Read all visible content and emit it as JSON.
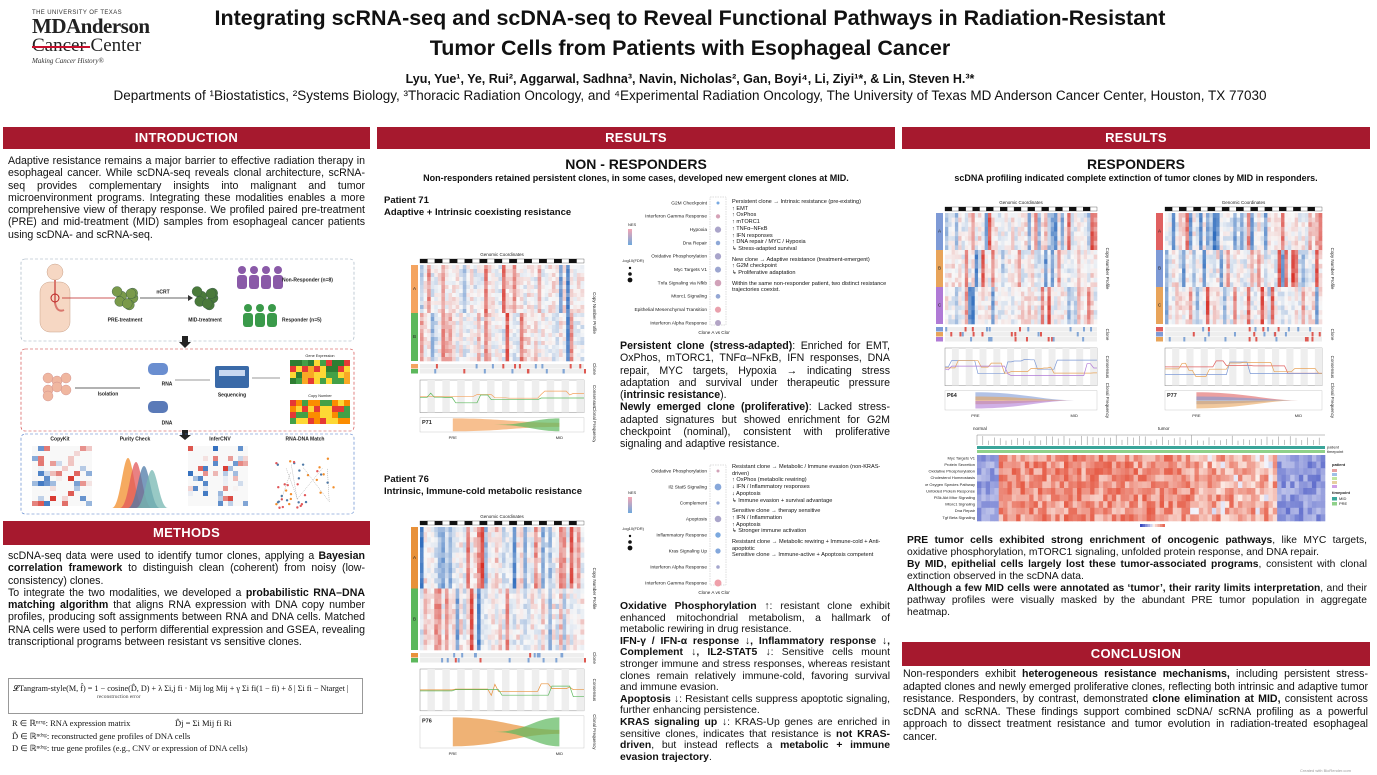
{
  "header": {
    "institution": [
      "THE UNIVERSITY OF TEXAS",
      "MDAnderson",
      "Cancer Center",
      "Making Cancer History®"
    ],
    "title": "Integrating scRNA-seq and scDNA-seq to Reveal Functional Pathways in Radiation-Resistant Tumor Cells from Patients with Esophageal Cancer",
    "authors": "Lyu, Yue¹, Ye, Rui², Aggarwal, Sadhna³, Navin, Nicholas², Gan, Boyi⁴, Li, Ziyi¹*, & Lin, Steven H.³*",
    "affiliations": "Departments of ¹Biostatistics, ²Systems Biology, ³Thoracic Radiation Oncology, and ⁴Experimental Radiation Oncology, The University of Texas MD Anderson Cancer Center, Houston, TX 77030"
  },
  "introduction": {
    "heading": "INTRODUCTION",
    "text": "Adaptive resistance remains a major barrier to effective radiation therapy in esophageal cancer. While scDNA-seq reveals clonal architecture, scRNA-seq provides complementary insights into malignant and tumor microenvironment programs. Integrating these modalities enables a more comprehensive view of therapy response. We profiled paired pre-treatment (PRE) and mid-treatment (MID) samples from esophageal cancer patients using scDNA- and scRNA-seq.",
    "figure": {
      "ncrt": "nCRT",
      "pre": "PRE-treatment",
      "mid": "MID-treatment",
      "non_responder": "Non-Responder (n=8)",
      "responder": "Responder (n=5)",
      "isolation": "Isolation",
      "rna": "RNA",
      "dna": "DNA",
      "sequencing": "Sequencing",
      "gene_expression": "Gene Expression",
      "copy_number": "Copy Number",
      "copykit": "CopyKit",
      "purity": "Purity Check",
      "infercnv": "InferCNV",
      "match": "RNA-DNA Match"
    }
  },
  "methods": {
    "heading": "METHODS",
    "paragraphs": [
      [
        "scDNA-seq data were used to identify tumor clones, applying a ",
        {
          "text": "Bayesian correlation framework",
          "bold": true
        },
        " to distinguish clean (coherent) from noisy (low-consistency) clones."
      ],
      [
        "To integrate the two modalities, we developed a ",
        {
          "text": "probabilistic RNA–DNA matching algorithm",
          "bold": true
        },
        " that aligns RNA expression with DNA copy number profiles, producing soft assignments between RNA and DNA cells. Matched RNA cells were used to perform differential expression and GSEA, revealing transcriptional programs between resistant vs sensitive clones."
      ]
    ],
    "equation": "𝓛Tangram-style(M, f̂) = 1 − cosine(D̂, D) + λ Σi,j fi · Mij log Mij + γ Σi fi(1 − fi) + δ | Σi fi − Ntarget |",
    "equation_note": "reconstruction error",
    "notation": [
      "R ∈ ℝⁿʳˣᵍ: RNA expression matrix",
      "D̂j = Σi Mij fi Ri",
      "D̂ ∈ ℝⁿᵈˣᵍ: reconstructed gene profiles of DNA cells",
      "D ∈ ℝⁿᵈˣᵍ: true gene profiles (e.g., CNV or expression of DNA cells)"
    ]
  },
  "results_nonresponders": {
    "heading": "RESULTS",
    "subheading": "NON - RESPONDERS",
    "summary": "Non-responders retained persistent clones, in some cases, developed new emergent clones at MID.",
    "patient71": {
      "name": "Patient 71",
      "type": "Adaptive + Intrinsic coexisting resistance",
      "figure": {
        "genomic_coordinates": "Genomic Coordinates",
        "copy_number": "Copy Number Profile",
        "clone": "Clone",
        "consensus": "Consensus",
        "clonal_frequency": "Clonal Frequency",
        "sample": "P71",
        "pre": "PRE",
        "mid": "MID",
        "clones": [
          "A",
          "B"
        ]
      },
      "dotplot": {
        "pathways": [
          "G2M Checkpoint",
          "Interferon Gamma Response",
          "Hypoxia",
          "Dna Repair",
          "Oxidative Phosphorylation",
          "Myc Targets V1",
          "Tnfa Signaling via Nfkb",
          "Mtorc1 Signaling",
          "Epithelial Mesenchymal Transition",
          "Interferon Alpha Response"
        ],
        "x_label": "Clone A vs Clone B",
        "legend_nes": "NES",
        "legend_fdr": "-log10(FDR)"
      },
      "notes": [
        "Persistent clone → Intrinsic resistance (pre-existing)",
        "↑ EMT",
        "↑ OxPhos",
        "↑ mTORC1",
        "↑ TNFα–NFκB",
        "↑ IFN responses",
        "↑ DNA repair / MYC / Hypoxia",
        "↳ Stress-adapted survival",
        "",
        "New clone → Adaptive resistance (treatment-emergent)",
        "↑ G2M checkpoint",
        "↳ Proliferative adaptation",
        "",
        "Within the same non-responder patient, two distinct resistance trajectories coexist."
      ],
      "paragraphs": [
        [
          {
            "text": "Persistent clone (stress-adapted)",
            "bold": true
          },
          ": Enriched for EMT, OxPhos, mTORC1, TNFα–NFκB, IFN responses, DNA repair, MYC targets, Hypoxia → indicating stress adaptation and survival under therapeutic pressure (",
          {
            "text": "intrinsic resistance",
            "bold": true
          },
          ")."
        ],
        [
          {
            "text": "Newly emerged clone (proliferative)",
            "bold": true
          },
          ": Lacked stress-adapted signatures but showed enrichment for G2M checkpoint (nominal), consistent with proliferative signaling and adaptive resistance."
        ]
      ]
    },
    "patient76": {
      "name": "Patient 76",
      "type": "Intrinsic, Immune-cold metabolic resistance",
      "figure": {
        "genomic_coordinates": "Genomic Coordinates",
        "copy_number": "Copy Number Profile",
        "clone": "Clone",
        "consensus": "Consensus",
        "clonal_frequency": "Clonal Frequency",
        "sample": "P76",
        "pre": "PRE",
        "mid": "MID",
        "clones": [
          "A",
          "B"
        ]
      },
      "dotplot": {
        "pathways": [
          "Oxidative Phosphorylation",
          "Il2 Stat5 Signaling",
          "Complement",
          "Apoptosis",
          "Inflammatory Response",
          "Kras Signaling Up",
          "Interferon Alpha Response",
          "Interferon Gamma Response"
        ],
        "x_label": "Clone A vs Clone B",
        "legend_nes": "NES",
        "legend_fdr": "-log10(FDR)"
      },
      "notes": [
        "Resistant clone → Metabolic / Immune evasion (non-KRAS-driven)",
        "↑ OxPhos (metabolic rewiring)",
        "↓ IFN / Inflammatory responses",
        "↓ Apoptosis",
        "↳ Immune evasion + survival advantage",
        "",
        "Sensitive clone → therapy sensitive",
        "↑ IFN / Inflammation",
        "↑ Apoptosis",
        "↳ Stronger immune activation",
        "",
        "Resistant clone → Metabolic rewiring + Immune-cold + Anti-apoptotic",
        "Sensitive clone → Immune-active + Apoptosis competent"
      ],
      "paragraphs": [
        [
          {
            "text": "Oxidative Phosphorylation ↑",
            "bold": true
          },
          ": resistant clone exhibit enhanced mitochondrial metabolism, a hallmark of metabolic rewiring in drug resistance."
        ],
        [
          {
            "text": "IFN-γ / IFN-α response ↓, Inflammatory response ↓, Complement ↓, IL2-STAT5 ↓",
            "bold": true
          },
          ": Sensitive cells mount stronger immune and stress responses, whereas resistant clones remain relatively immune-cold, favoring survival and immune evasion."
        ],
        [
          {
            "text": "Apoptosis ↓",
            "bold": true
          },
          ": Resistant cells suppress apoptotic signaling, further enhancing persistence."
        ],
        [
          {
            "text": "KRAS signaling up ↓",
            "bold": true
          },
          ": KRAS-Up genes are enriched in sensitive clones, indicates that resistance is ",
          {
            "text": "not KRAS-driven",
            "bold": true
          },
          ", but instead reflects a ",
          {
            "text": "metabolic + immune evasion trajectory",
            "bold": true
          },
          "."
        ]
      ]
    }
  },
  "results_responders": {
    "heading": "RESULTS",
    "subheading": "RESPONDERS",
    "summary": "scDNA profiling indicated complete extinction of tumor clones by MID in responders.",
    "figures": [
      {
        "genomic_coordinates": "Genomic Coordinates",
        "copy_number": "Copy Number Profile",
        "clone": "Clone",
        "consensus": "Consensus",
        "clonal_frequency": "Clonal Frequency",
        "sample": "P64",
        "pre": "PRE",
        "mid": "MID",
        "clones": [
          "A",
          "B",
          "C"
        ]
      },
      {
        "genomic_coordinates": "Genomic Coordinates",
        "copy_number": "Copy Number Profile",
        "clone": "Clone",
        "consensus": "Consensus",
        "clonal_frequency": "Clonal Frequency",
        "sample": "P77",
        "pre": "PRE",
        "mid": "MID",
        "clones": [
          "A",
          "B",
          "C"
        ]
      }
    ],
    "heatmap": {
      "groups": [
        "normal",
        "tumor"
      ],
      "annotations": [
        "patient",
        "timepoint"
      ],
      "pathways": [
        "Myc Targets V1",
        "Protein Secretion",
        "Oxidative Phosphorylation",
        "Cholesterol Homeostasis",
        "Reactive Oxygen Species Pathway",
        "Unfolded Protein Response",
        "Pi3k Akt Mtor Signaling",
        "Mtorc1 Signaling",
        "Dna Repair",
        "Tgf Beta Signaling"
      ],
      "timepoints": [
        "MID",
        "PRE"
      ]
    },
    "paragraphs": [
      [
        {
          "text": "PRE tumor cells exhibited strong enrichment of oncogenic pathways",
          "bold": true
        },
        ", like MYC targets, oxidative phosphorylation, mTORC1 signaling, unfolded protein response, and DNA repair."
      ],
      [
        {
          "text": "By MID, epithelial cells largely lost these tumor-associated programs",
          "bold": true
        },
        ", consistent with clonal extinction observed in the scDNA data."
      ],
      [
        {
          "text": "Although a few MID cells were annotated as ‘tumor’, their rarity limits interpretation",
          "bold": true
        },
        ", and their pathway profiles were visually masked by the abundant PRE tumor population in aggregate heatmap."
      ]
    ]
  },
  "conclusion": {
    "heading": "CONCLUSION",
    "paragraphs": [
      [
        "Non-responders exhibit ",
        {
          "text": "heterogeneous resistance mechanisms,",
          "bold": true
        },
        " including persistent stress-adapted clones and newly emerged proliferative clones, reflecting both intrinsic and adaptive tumor resistance. Responders, by contrast, demonstrated ",
        {
          "text": "clone elimination at MID,",
          "bold": true
        },
        " consistent across scDNA and scRNA. These findings support combined scDNA/ scRNA profiling as a powerful approach to dissect treatment resistance and tumor evolution in radiation-treated esophageal cancer."
      ]
    ]
  },
  "footer": "Created with BioRender.com"
}
